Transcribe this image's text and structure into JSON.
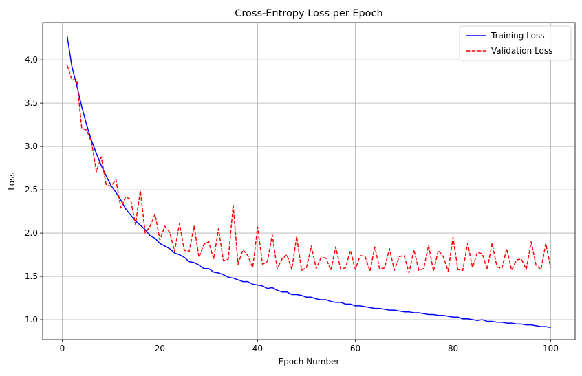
{
  "chart_data": {
    "type": "line",
    "title": "Cross-Entropy Loss per Epoch",
    "xlabel": "Epoch Number",
    "ylabel": "Loss",
    "xlim": [
      -4,
      105
    ],
    "ylim": [
      0.77,
      4.43
    ],
    "x_ticks": [
      0,
      20,
      40,
      60,
      80,
      100
    ],
    "y_ticks": [
      1.0,
      1.5,
      2.0,
      2.5,
      3.0,
      3.5,
      4.0
    ],
    "grid": true,
    "legend_position": "top-right",
    "x": [
      1,
      2,
      3,
      4,
      5,
      6,
      7,
      8,
      9,
      10,
      11,
      12,
      13,
      14,
      15,
      16,
      17,
      18,
      19,
      20,
      21,
      22,
      23,
      24,
      25,
      26,
      27,
      28,
      29,
      30,
      31,
      32,
      33,
      34,
      35,
      36,
      37,
      38,
      39,
      40,
      41,
      42,
      43,
      44,
      45,
      46,
      47,
      48,
      49,
      50,
      51,
      52,
      53,
      54,
      55,
      56,
      57,
      58,
      59,
      60,
      61,
      62,
      63,
      64,
      65,
      66,
      67,
      68,
      69,
      70,
      71,
      72,
      73,
      74,
      75,
      76,
      77,
      78,
      79,
      80,
      81,
      82,
      83,
      84,
      85,
      86,
      87,
      88,
      89,
      90,
      91,
      92,
      93,
      94,
      95,
      96,
      97,
      98,
      99,
      100
    ],
    "series": [
      {
        "name": "Training Loss",
        "color": "#0000ff",
        "style": "solid",
        "values": [
          4.28,
          3.92,
          3.7,
          3.46,
          3.25,
          3.07,
          2.92,
          2.78,
          2.66,
          2.55,
          2.47,
          2.38,
          2.28,
          2.21,
          2.14,
          2.09,
          2.04,
          1.97,
          1.94,
          1.88,
          1.85,
          1.82,
          1.77,
          1.75,
          1.72,
          1.67,
          1.66,
          1.63,
          1.59,
          1.59,
          1.55,
          1.54,
          1.52,
          1.49,
          1.48,
          1.46,
          1.44,
          1.44,
          1.41,
          1.4,
          1.39,
          1.36,
          1.37,
          1.34,
          1.32,
          1.32,
          1.29,
          1.29,
          1.28,
          1.26,
          1.26,
          1.24,
          1.23,
          1.23,
          1.21,
          1.2,
          1.2,
          1.18,
          1.18,
          1.16,
          1.16,
          1.15,
          1.14,
          1.13,
          1.13,
          1.12,
          1.11,
          1.11,
          1.1,
          1.09,
          1.09,
          1.08,
          1.08,
          1.07,
          1.06,
          1.06,
          1.05,
          1.05,
          1.04,
          1.03,
          1.03,
          1.01,
          1.01,
          1.0,
          0.99,
          1.0,
          0.98,
          0.98,
          0.97,
          0.97,
          0.96,
          0.96,
          0.95,
          0.95,
          0.94,
          0.94,
          0.93,
          0.92,
          0.92,
          0.91
        ]
      },
      {
        "name": "Validation Loss",
        "color": "#ff0000",
        "style": "dashed",
        "values": [
          3.94,
          3.77,
          3.77,
          3.21,
          3.19,
          3.05,
          2.71,
          2.88,
          2.56,
          2.54,
          2.62,
          2.29,
          2.42,
          2.39,
          2.1,
          2.49,
          2.0,
          2.08,
          2.22,
          1.92,
          2.08,
          2.01,
          1.79,
          2.11,
          1.8,
          1.79,
          2.08,
          1.72,
          1.87,
          1.9,
          1.7,
          2.05,
          1.68,
          1.7,
          2.32,
          1.64,
          1.81,
          1.74,
          1.6,
          2.07,
          1.64,
          1.67,
          1.98,
          1.59,
          1.7,
          1.75,
          1.58,
          1.96,
          1.57,
          1.6,
          1.85,
          1.59,
          1.72,
          1.71,
          1.57,
          1.84,
          1.58,
          1.6,
          1.8,
          1.58,
          1.74,
          1.73,
          1.56,
          1.84,
          1.58,
          1.6,
          1.82,
          1.57,
          1.73,
          1.74,
          1.54,
          1.81,
          1.57,
          1.59,
          1.86,
          1.56,
          1.8,
          1.73,
          1.56,
          1.95,
          1.58,
          1.57,
          1.88,
          1.6,
          1.78,
          1.76,
          1.58,
          1.88,
          1.61,
          1.59,
          1.82,
          1.57,
          1.69,
          1.7,
          1.58,
          1.9,
          1.63,
          1.58,
          1.88,
          1.6
        ]
      }
    ]
  }
}
